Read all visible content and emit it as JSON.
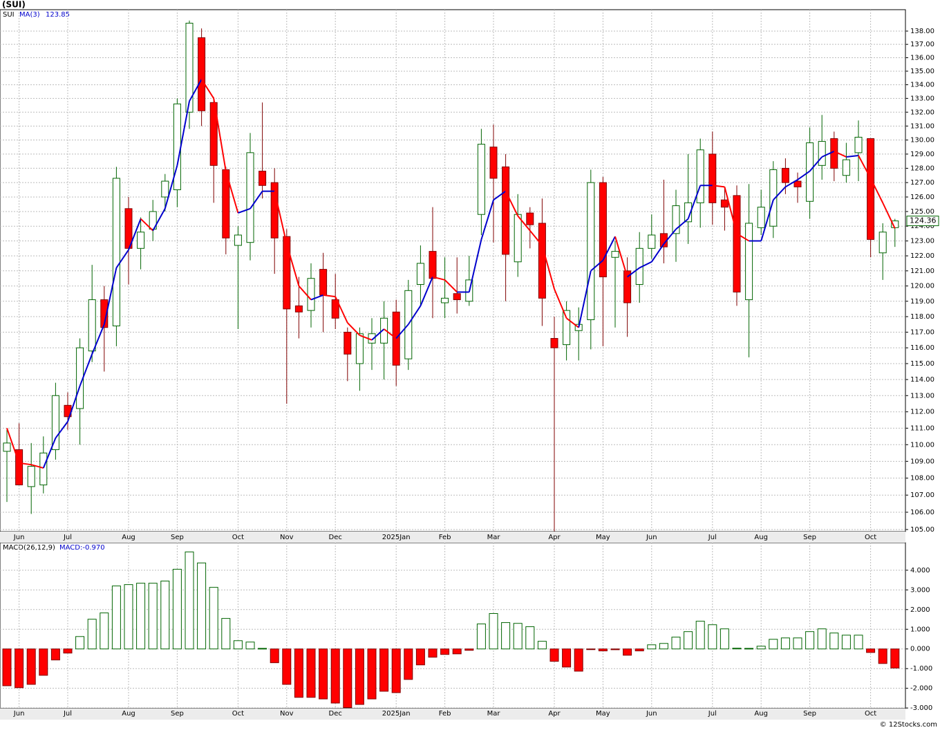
{
  "chart_data": [
    {
      "type": "candlestick",
      "title": "(SUI)",
      "symbol": "SUI",
      "categories": [
        null,
        "Jun",
        null,
        null,
        null,
        "Jul",
        null,
        null,
        null,
        null,
        "Aug",
        null,
        null,
        null,
        "Sep",
        null,
        null,
        null,
        null,
        "Oct",
        null,
        null,
        null,
        "Nov",
        null,
        null,
        null,
        "Dec",
        null,
        null,
        null,
        null,
        "2025Jan",
        null,
        null,
        null,
        "Feb",
        null,
        null,
        null,
        "Mar",
        null,
        null,
        null,
        null,
        "Apr",
        null,
        null,
        null,
        "May",
        null,
        null,
        null,
        "Jun",
        null,
        null,
        null,
        null,
        "Jul",
        null,
        null,
        null,
        "Aug",
        null,
        null,
        null,
        "Sep",
        null,
        null,
        null,
        null,
        "Oct",
        null,
        null
      ],
      "open": [
        109.6,
        109.7,
        107.5,
        107.6,
        109.7,
        112.4,
        112.2,
        115.8,
        119.1,
        117.4,
        125.2,
        122.5,
        123.8,
        126.0,
        126.5,
        132.0,
        137.5,
        132.7,
        127.9,
        122.7,
        122.9,
        127.8,
        127.0,
        123.3,
        118.7,
        118.4,
        121.1,
        119.1,
        117.0,
        115.0,
        116.3,
        116.3,
        118.3,
        115.3,
        120.1,
        122.3,
        118.9,
        119.5,
        119.0,
        124.8,
        129.5,
        128.1,
        121.6,
        124.9,
        124.2,
        116.6,
        116.2,
        117.1,
        117.8,
        127.0,
        121.9,
        121.0,
        120.1,
        122.5,
        123.5,
        123.5,
        124.3,
        125.6,
        129.0,
        125.8,
        126.1,
        119.1,
        123.9,
        124.0,
        128.0,
        127.1,
        125.7,
        128.2,
        130.1,
        127.5,
        129.1,
        130.1,
        122.2,
        123.9
      ],
      "high": [
        110.9,
        111.3,
        110.1,
        110.5,
        113.8,
        113.2,
        116.6,
        121.4,
        120.0,
        128.1,
        126.0,
        124.6,
        125.8,
        127.6,
        133.0,
        138.8,
        138.2,
        133.1,
        128.1,
        124.0,
        130.5,
        132.7,
        128.0,
        123.8,
        120.6,
        121.5,
        122.2,
        120.8,
        117.3,
        117.3,
        117.9,
        119.0,
        119.1,
        120.4,
        122.7,
        125.3,
        121.9,
        121.9,
        122.0,
        130.8,
        131.1,
        129.0,
        126.2,
        125.3,
        125.9,
        118.0,
        119.0,
        118.6,
        127.9,
        127.4,
        123.0,
        121.9,
        123.6,
        124.8,
        127.2,
        126.5,
        129.0,
        130.1,
        130.6,
        126.7,
        126.8,
        126.9,
        126.5,
        128.5,
        128.7,
        127.7,
        130.9,
        131.8,
        130.6,
        129.8,
        131.4,
        130.1,
        124.2,
        124.5
      ],
      "low": [
        106.6,
        107.6,
        105.9,
        107.1,
        109.1,
        110.9,
        110.0,
        115.1,
        114.5,
        116.1,
        120.1,
        121.1,
        123.0,
        125.0,
        125.3,
        130.8,
        131.0,
        125.6,
        122.1,
        117.2,
        121.7,
        125.9,
        120.8,
        112.5,
        116.6,
        117.3,
        117.0,
        117.2,
        113.9,
        113.3,
        114.6,
        114.0,
        113.6,
        114.6,
        118.7,
        117.9,
        117.9,
        118.2,
        118.7,
        123.4,
        122.9,
        119.0,
        120.6,
        122.5,
        117.4,
        104.9,
        115.2,
        115.2,
        115.9,
        116.1,
        117.3,
        116.7,
        118.9,
        121.8,
        121.5,
        121.6,
        122.8,
        123.9,
        124.1,
        123.7,
        118.7,
        115.4,
        123.4,
        123.2,
        126.2,
        125.6,
        124.5,
        127.2,
        127.1,
        127.0,
        127.1,
        121.9,
        120.4,
        122.6
      ],
      "close": [
        110.1,
        107.6,
        108.7,
        109.5,
        113.0,
        111.7,
        116.0,
        119.1,
        117.3,
        127.3,
        122.5,
        123.6,
        125.0,
        127.1,
        132.6,
        138.6,
        132.1,
        128.2,
        123.2,
        123.4,
        129.1,
        126.8,
        123.2,
        118.5,
        118.3,
        120.5,
        119.4,
        117.9,
        115.6,
        116.9,
        116.9,
        117.9,
        114.9,
        119.7,
        121.5,
        120.5,
        119.2,
        119.1,
        120.4,
        129.7,
        127.3,
        122.1,
        124.8,
        124.1,
        119.2,
        116.0,
        118.4,
        117.5,
        127.0,
        120.6,
        122.3,
        118.9,
        122.5,
        123.4,
        122.6,
        125.4,
        125.6,
        129.3,
        125.6,
        125.3,
        119.6,
        124.2,
        125.3,
        127.9,
        127.0,
        126.7,
        129.8,
        129.9,
        128.0,
        128.6,
        130.2,
        123.1,
        123.6,
        124.36
      ],
      "up_color": "#006400",
      "down_color": "#ff0000",
      "ma": {
        "name": "MA(3)",
        "rise_color": "#0000cc",
        "fall_color": "#ff0000",
        "values": [
          111.0,
          108.9,
          108.8,
          108.6,
          110.4,
          111.4,
          113.6,
          115.6,
          117.5,
          121.2,
          122.4,
          124.5,
          123.7,
          125.2,
          128.2,
          132.8,
          134.4,
          133.0,
          127.8,
          124.9,
          125.2,
          126.4,
          126.4,
          122.8,
          120.0,
          119.1,
          119.4,
          119.3,
          117.6,
          116.8,
          116.5,
          117.2,
          116.6,
          117.5,
          118.7,
          120.6,
          120.4,
          119.6,
          119.6,
          123.1,
          125.8,
          126.4,
          124.7,
          123.7,
          122.7,
          119.8,
          117.9,
          117.3,
          121.0,
          121.7,
          123.3,
          120.6,
          121.2,
          121.6,
          122.8,
          123.8,
          124.5,
          126.8,
          126.8,
          126.7,
          123.5,
          123.0,
          123.0,
          125.8,
          126.7,
          127.2,
          127.8,
          128.8,
          129.2,
          128.8,
          128.9,
          127.3,
          125.6,
          123.85
        ]
      },
      "log_scale": true,
      "grid": true,
      "ylim": [
        104.88,
        139.63
      ],
      "yticks": [
        {
          "value": 105,
          "label": "105.00"
        },
        {
          "value": 106,
          "label": "106.00"
        },
        {
          "value": 107,
          "label": "107.00"
        },
        {
          "value": 108,
          "label": "108.00"
        },
        {
          "value": 109,
          "label": "109.00"
        },
        {
          "value": 110,
          "label": "110.00"
        },
        {
          "value": 111,
          "label": "111.00"
        },
        {
          "value": 112,
          "label": "112.00"
        },
        {
          "value": 113,
          "label": "113.00"
        },
        {
          "value": 114,
          "label": "114.00"
        },
        {
          "value": 115,
          "label": "115.00"
        },
        {
          "value": 116,
          "label": "116.00"
        },
        {
          "value": 117,
          "label": "117.00"
        },
        {
          "value": 118,
          "label": "118.00"
        },
        {
          "value": 119,
          "label": "119.00"
        },
        {
          "value": 120,
          "label": "120.00"
        },
        {
          "value": 121,
          "label": "121.00"
        },
        {
          "value": 122,
          "label": "122.00"
        },
        {
          "value": 123,
          "label": "123.00"
        },
        {
          "value": 124,
          "label": "124.00"
        },
        {
          "value": 125,
          "label": "125.00"
        },
        {
          "value": 126,
          "label": "126.00"
        },
        {
          "value": 127,
          "label": "127.00"
        },
        {
          "value": 128,
          "label": "128.00"
        },
        {
          "value": 129,
          "label": "129.00"
        },
        {
          "value": 130,
          "label": "130.00"
        },
        {
          "value": 131,
          "label": "131.00"
        },
        {
          "value": 132,
          "label": "132.00"
        },
        {
          "value": 133,
          "label": "133.00"
        },
        {
          "value": 134,
          "label": "134.00"
        },
        {
          "value": 135,
          "label": "135.00"
        },
        {
          "value": 136,
          "label": "136.00"
        },
        {
          "value": 137,
          "label": "137.00"
        },
        {
          "value": 138,
          "label": "138.00"
        }
      ]
    },
    {
      "type": "bar",
      "name": "MACD(26,12,9)",
      "current_label": "MACD:-0.970",
      "values": [
        -1.87,
        -1.97,
        -1.8,
        -1.34,
        -0.56,
        -0.21,
        0.63,
        1.51,
        1.83,
        3.2,
        3.27,
        3.34,
        3.34,
        3.45,
        4.05,
        4.93,
        4.37,
        3.13,
        1.55,
        0.42,
        0.35,
        0.03,
        -0.7,
        -1.8,
        -2.46,
        -2.46,
        -2.54,
        -2.75,
        -2.98,
        -2.82,
        -2.54,
        -2.15,
        -2.22,
        -1.55,
        -0.81,
        -0.42,
        -0.28,
        -0.25,
        -0.07,
        1.27,
        1.8,
        1.34,
        1.3,
        1.13,
        0.39,
        -0.63,
        -0.92,
        -1.13,
        -0.03,
        -0.1,
        -0.04,
        -0.32,
        -0.1,
        0.21,
        0.28,
        0.6,
        0.88,
        1.41,
        1.23,
        1.02,
        0.04,
        0.03,
        0.14,
        0.49,
        0.56,
        0.56,
        0.88,
        1.02,
        0.81,
        0.7,
        0.7,
        -0.18,
        -0.74,
        -0.97
      ],
      "up_color": "#006400",
      "down_color": "#ff0000",
      "grid": true,
      "ylim": [
        -3.03,
        5.4
      ],
      "yticks": [
        {
          "value": -3,
          "label": "-3.000"
        },
        {
          "value": -2,
          "label": "-2.000"
        },
        {
          "value": -1,
          "label": "-1.000"
        },
        {
          "value": 0,
          "label": "0.000"
        },
        {
          "value": 1,
          "label": "1.000"
        },
        {
          "value": 2,
          "label": "2.000"
        },
        {
          "value": 3,
          "label": "3.000"
        },
        {
          "value": 4,
          "label": "4.000"
        }
      ]
    }
  ],
  "footer": "© 12Stocks.com"
}
